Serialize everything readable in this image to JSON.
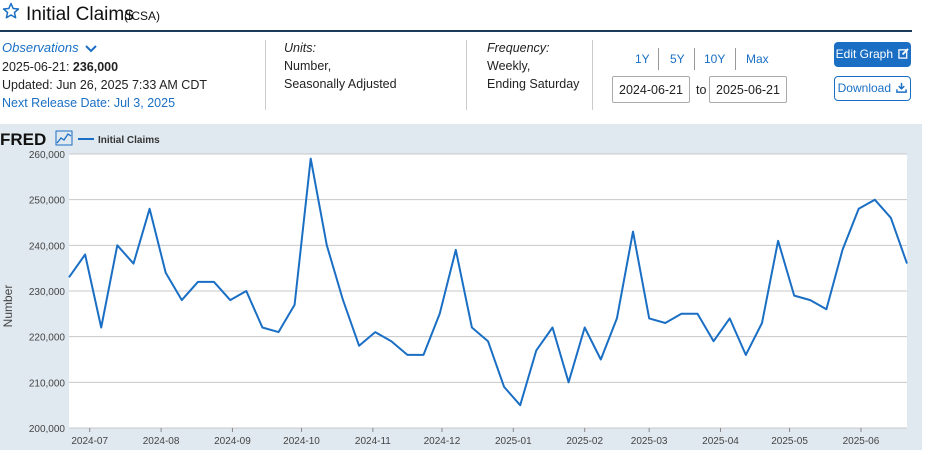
{
  "header": {
    "title": "Initial Claims",
    "series_id": "(ICSA)"
  },
  "observations": {
    "label": "Observations",
    "latest_date": "2025-06-21:",
    "latest_value": "236,000",
    "updated": "Updated: Jun 26, 2025 7:33 AM CDT",
    "next_release": "Next Release Date: Jul 3, 2025"
  },
  "units": {
    "label": "Units:",
    "line1": "Number,",
    "line2": "Seasonally Adjusted"
  },
  "frequency": {
    "label": "Frequency:",
    "line1": "Weekly,",
    "line2": "Ending Saturday"
  },
  "range_buttons": [
    "1Y",
    "5Y",
    "10Y",
    "Max"
  ],
  "date_range": {
    "from": "2024-06-21",
    "to_label": "to",
    "to": "2025-06-21"
  },
  "buttons": {
    "edit_graph": "Edit Graph",
    "download": "Download"
  },
  "colors": {
    "accent": "#1a6fc4",
    "line": "#1a6fc4",
    "plot_bg": "#ffffff",
    "chart_bg": "#e1e9f0"
  },
  "chart_data": {
    "type": "line",
    "logo": "FRED",
    "legend": "Initial Claims",
    "ylabel": "Number",
    "ylim": [
      200000,
      260000
    ],
    "yticks": [
      200000,
      210000,
      220000,
      230000,
      240000,
      250000,
      260000
    ],
    "ytick_labels": [
      "200,000",
      "210,000",
      "220,000",
      "230,000",
      "240,000",
      "250,000",
      "260,000"
    ],
    "xtick_labels": [
      "2024-07",
      "2024-08",
      "2024-09",
      "2024-10",
      "2024-11",
      "2024-12",
      "2025-01",
      "2025-02",
      "2025-03",
      "2025-04",
      "2025-05",
      "2025-06"
    ],
    "grid": true,
    "series": [
      {
        "name": "Initial Claims",
        "x": [
          "2024-06-22",
          "2024-06-29",
          "2024-07-06",
          "2024-07-13",
          "2024-07-20",
          "2024-07-27",
          "2024-08-03",
          "2024-08-10",
          "2024-08-17",
          "2024-08-24",
          "2024-08-31",
          "2024-09-07",
          "2024-09-14",
          "2024-09-21",
          "2024-09-28",
          "2024-10-05",
          "2024-10-12",
          "2024-10-19",
          "2024-10-26",
          "2024-11-02",
          "2024-11-09",
          "2024-11-16",
          "2024-11-23",
          "2024-11-30",
          "2024-12-07",
          "2024-12-14",
          "2024-12-21",
          "2024-12-28",
          "2025-01-04",
          "2025-01-11",
          "2025-01-18",
          "2025-01-25",
          "2025-02-01",
          "2025-02-08",
          "2025-02-15",
          "2025-02-22",
          "2025-03-01",
          "2025-03-08",
          "2025-03-15",
          "2025-03-22",
          "2025-03-29",
          "2025-04-05",
          "2025-04-12",
          "2025-04-19",
          "2025-04-26",
          "2025-05-03",
          "2025-05-10",
          "2025-05-17",
          "2025-05-24",
          "2025-05-31",
          "2025-06-07",
          "2025-06-14",
          "2025-06-21"
        ],
        "values": [
          233000,
          238000,
          222000,
          240000,
          236000,
          248000,
          234000,
          228000,
          232000,
          232000,
          228000,
          230000,
          222000,
          221000,
          227000,
          259000,
          240000,
          228000,
          218000,
          221000,
          219000,
          216000,
          216000,
          225000,
          239000,
          222000,
          219000,
          209000,
          205000,
          217000,
          222000,
          210000,
          222000,
          215000,
          224000,
          243000,
          224000,
          223000,
          225000,
          225000,
          219000,
          224000,
          216000,
          223000,
          241000,
          229000,
          228000,
          226000,
          239000,
          248000,
          250000,
          246000,
          236000
        ]
      }
    ]
  }
}
